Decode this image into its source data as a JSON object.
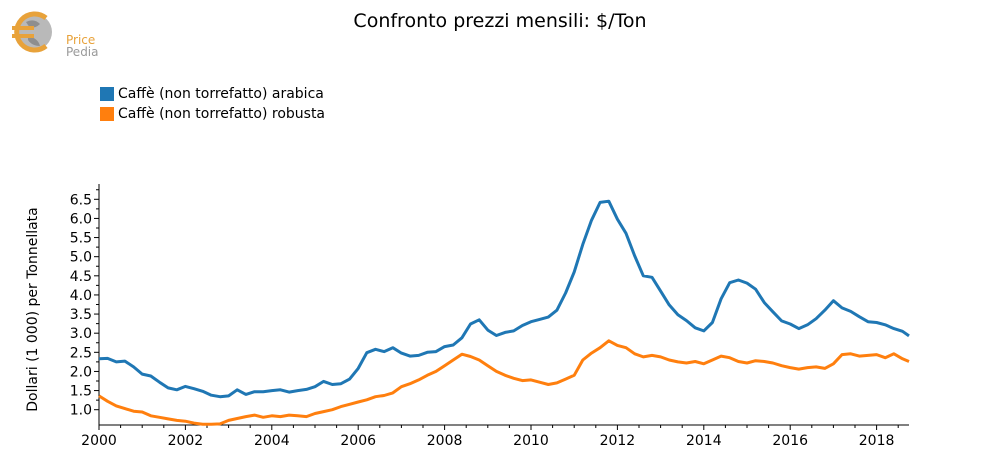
{
  "brand": {
    "line1": "Price",
    "line2": "Pedia",
    "logo": "euro-globe-logo"
  },
  "chart_data": {
    "type": "line",
    "title": "Confronto prezzi mensili: $/Ton",
    "ylabel": "Dollari (1 000) per Tonnellata",
    "xlabel": "",
    "xlim": [
      2000,
      2018.75
    ],
    "ylim": [
      0.6,
      6.9
    ],
    "xticks": [
      2000,
      2002,
      2004,
      2006,
      2008,
      2010,
      2012,
      2014,
      2016,
      2018
    ],
    "yticks": [
      1.0,
      1.5,
      2.0,
      2.5,
      3.0,
      3.5,
      4.0,
      4.5,
      5.0,
      5.5,
      6.0,
      6.5
    ],
    "legend_position": "top-left",
    "series": [
      {
        "name": "Caffè (non torrefatto) arabica",
        "color": "#1f77b4",
        "points": [
          [
            2000.0,
            2.33
          ],
          [
            2000.2,
            2.34
          ],
          [
            2000.4,
            2.25
          ],
          [
            2000.6,
            2.27
          ],
          [
            2000.8,
            2.12
          ],
          [
            2001.0,
            1.93
          ],
          [
            2001.2,
            1.88
          ],
          [
            2001.4,
            1.72
          ],
          [
            2001.6,
            1.57
          ],
          [
            2001.8,
            1.52
          ],
          [
            2002.0,
            1.61
          ],
          [
            2002.2,
            1.55
          ],
          [
            2002.4,
            1.48
          ],
          [
            2002.6,
            1.38
          ],
          [
            2002.8,
            1.34
          ],
          [
            2003.0,
            1.36
          ],
          [
            2003.2,
            1.52
          ],
          [
            2003.4,
            1.4
          ],
          [
            2003.6,
            1.47
          ],
          [
            2003.8,
            1.47
          ],
          [
            2004.0,
            1.5
          ],
          [
            2004.2,
            1.52
          ],
          [
            2004.4,
            1.46
          ],
          [
            2004.6,
            1.5
          ],
          [
            2004.8,
            1.53
          ],
          [
            2005.0,
            1.6
          ],
          [
            2005.2,
            1.74
          ],
          [
            2005.4,
            1.66
          ],
          [
            2005.6,
            1.68
          ],
          [
            2005.8,
            1.8
          ],
          [
            2006.0,
            2.08
          ],
          [
            2006.2,
            2.49
          ],
          [
            2006.4,
            2.58
          ],
          [
            2006.6,
            2.52
          ],
          [
            2006.8,
            2.62
          ],
          [
            2007.0,
            2.48
          ],
          [
            2007.2,
            2.4
          ],
          [
            2007.4,
            2.42
          ],
          [
            2007.6,
            2.5
          ],
          [
            2007.8,
            2.52
          ],
          [
            2008.0,
            2.65
          ],
          [
            2008.2,
            2.69
          ],
          [
            2008.4,
            2.88
          ],
          [
            2008.6,
            3.24
          ],
          [
            2008.8,
            3.35
          ],
          [
            2009.0,
            3.08
          ],
          [
            2009.2,
            2.94
          ],
          [
            2009.4,
            3.02
          ],
          [
            2009.6,
            3.06
          ],
          [
            2009.8,
            3.2
          ],
          [
            2010.0,
            3.3
          ],
          [
            2010.2,
            3.36
          ],
          [
            2010.4,
            3.42
          ],
          [
            2010.6,
            3.6
          ],
          [
            2010.8,
            4.05
          ],
          [
            2011.0,
            4.6
          ],
          [
            2011.2,
            5.32
          ],
          [
            2011.4,
            5.95
          ],
          [
            2011.6,
            6.42
          ],
          [
            2011.8,
            6.45
          ],
          [
            2012.0,
            5.98
          ],
          [
            2012.2,
            5.61
          ],
          [
            2012.4,
            5.02
          ],
          [
            2012.6,
            4.5
          ],
          [
            2012.8,
            4.46
          ],
          [
            2013.0,
            4.1
          ],
          [
            2013.2,
            3.74
          ],
          [
            2013.4,
            3.48
          ],
          [
            2013.6,
            3.33
          ],
          [
            2013.8,
            3.14
          ],
          [
            2014.0,
            3.06
          ],
          [
            2014.2,
            3.28
          ],
          [
            2014.4,
            3.9
          ],
          [
            2014.6,
            4.32
          ],
          [
            2014.8,
            4.39
          ],
          [
            2015.0,
            4.31
          ],
          [
            2015.2,
            4.15
          ],
          [
            2015.4,
            3.8
          ],
          [
            2015.6,
            3.56
          ],
          [
            2015.8,
            3.32
          ],
          [
            2016.0,
            3.24
          ],
          [
            2016.2,
            3.12
          ],
          [
            2016.4,
            3.22
          ],
          [
            2016.6,
            3.38
          ],
          [
            2016.8,
            3.6
          ],
          [
            2017.0,
            3.85
          ],
          [
            2017.2,
            3.66
          ],
          [
            2017.4,
            3.57
          ],
          [
            2017.6,
            3.43
          ],
          [
            2017.8,
            3.3
          ],
          [
            2018.0,
            3.28
          ],
          [
            2018.2,
            3.22
          ],
          [
            2018.4,
            3.12
          ],
          [
            2018.6,
            3.05
          ],
          [
            2018.75,
            2.93
          ]
        ]
      },
      {
        "name": "Caffè (non torrefatto) robusta",
        "color": "#ff7f0e",
        "points": [
          [
            2000.0,
            1.36
          ],
          [
            2000.2,
            1.22
          ],
          [
            2000.4,
            1.1
          ],
          [
            2000.6,
            1.03
          ],
          [
            2000.8,
            0.96
          ],
          [
            2001.0,
            0.94
          ],
          [
            2001.2,
            0.84
          ],
          [
            2001.4,
            0.8
          ],
          [
            2001.6,
            0.76
          ],
          [
            2001.8,
            0.72
          ],
          [
            2002.0,
            0.7
          ],
          [
            2002.2,
            0.65
          ],
          [
            2002.4,
            0.62
          ],
          [
            2002.6,
            0.62
          ],
          [
            2002.8,
            0.63
          ],
          [
            2003.0,
            0.72
          ],
          [
            2003.2,
            0.77
          ],
          [
            2003.4,
            0.82
          ],
          [
            2003.6,
            0.86
          ],
          [
            2003.8,
            0.8
          ],
          [
            2004.0,
            0.84
          ],
          [
            2004.2,
            0.82
          ],
          [
            2004.4,
            0.86
          ],
          [
            2004.6,
            0.84
          ],
          [
            2004.8,
            0.82
          ],
          [
            2005.0,
            0.9
          ],
          [
            2005.2,
            0.95
          ],
          [
            2005.4,
            1.0
          ],
          [
            2005.6,
            1.08
          ],
          [
            2005.8,
            1.14
          ],
          [
            2006.0,
            1.2
          ],
          [
            2006.2,
            1.26
          ],
          [
            2006.4,
            1.34
          ],
          [
            2006.6,
            1.37
          ],
          [
            2006.8,
            1.44
          ],
          [
            2007.0,
            1.6
          ],
          [
            2007.2,
            1.68
          ],
          [
            2007.4,
            1.78
          ],
          [
            2007.6,
            1.9
          ],
          [
            2007.8,
            2.0
          ],
          [
            2008.0,
            2.15
          ],
          [
            2008.2,
            2.3
          ],
          [
            2008.4,
            2.45
          ],
          [
            2008.6,
            2.39
          ],
          [
            2008.8,
            2.3
          ],
          [
            2009.0,
            2.15
          ],
          [
            2009.2,
            2.0
          ],
          [
            2009.4,
            1.9
          ],
          [
            2009.6,
            1.82
          ],
          [
            2009.8,
            1.76
          ],
          [
            2010.0,
            1.78
          ],
          [
            2010.2,
            1.72
          ],
          [
            2010.4,
            1.66
          ],
          [
            2010.6,
            1.7
          ],
          [
            2010.8,
            1.8
          ],
          [
            2011.0,
            1.9
          ],
          [
            2011.2,
            2.3
          ],
          [
            2011.4,
            2.48
          ],
          [
            2011.6,
            2.62
          ],
          [
            2011.8,
            2.8
          ],
          [
            2012.0,
            2.68
          ],
          [
            2012.2,
            2.62
          ],
          [
            2012.4,
            2.46
          ],
          [
            2012.6,
            2.38
          ],
          [
            2012.8,
            2.42
          ],
          [
            2013.0,
            2.38
          ],
          [
            2013.2,
            2.3
          ],
          [
            2013.4,
            2.25
          ],
          [
            2013.6,
            2.22
          ],
          [
            2013.8,
            2.26
          ],
          [
            2014.0,
            2.2
          ],
          [
            2014.2,
            2.3
          ],
          [
            2014.4,
            2.4
          ],
          [
            2014.6,
            2.36
          ],
          [
            2014.8,
            2.26
          ],
          [
            2015.0,
            2.22
          ],
          [
            2015.2,
            2.28
          ],
          [
            2015.4,
            2.26
          ],
          [
            2015.6,
            2.22
          ],
          [
            2015.8,
            2.15
          ],
          [
            2016.0,
            2.1
          ],
          [
            2016.2,
            2.06
          ],
          [
            2016.4,
            2.1
          ],
          [
            2016.6,
            2.12
          ],
          [
            2016.8,
            2.08
          ],
          [
            2017.0,
            2.2
          ],
          [
            2017.2,
            2.44
          ],
          [
            2017.4,
            2.46
          ],
          [
            2017.6,
            2.4
          ],
          [
            2017.8,
            2.42
          ],
          [
            2018.0,
            2.44
          ],
          [
            2018.2,
            2.36
          ],
          [
            2018.4,
            2.46
          ],
          [
            2018.6,
            2.33
          ],
          [
            2018.75,
            2.26
          ]
        ]
      }
    ]
  }
}
